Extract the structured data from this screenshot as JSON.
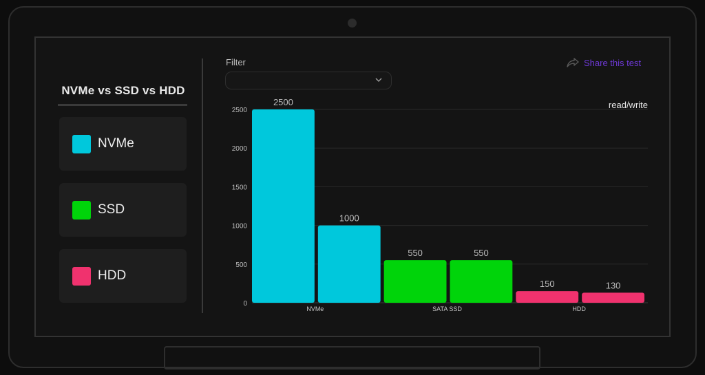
{
  "sidebar": {
    "title": "NVMe vs SSD vs HDD",
    "legend": [
      {
        "label": "NVMe",
        "color": "#00c8dc"
      },
      {
        "label": "SSD",
        "color": "#00d40a"
      },
      {
        "label": "HDD",
        "color": "#f0326e"
      }
    ]
  },
  "filter": {
    "label": "Filter",
    "value": ""
  },
  "share": {
    "label": "Share this test",
    "icon": "share-arrow-icon"
  },
  "chart_data": {
    "type": "bar",
    "categories": [
      "NVMe",
      "SATA SSD",
      "HDD"
    ],
    "series": [
      {
        "values": [
          2500,
          550,
          150
        ]
      },
      {
        "values": [
          1000,
          550,
          130
        ]
      }
    ],
    "colors": [
      "#00c8dc",
      "#00d40a",
      "#f0326e"
    ],
    "annotation": "read/write",
    "y_ticks": [
      0,
      500,
      1000,
      1500,
      2000,
      2500
    ],
    "ylim": [
      0,
      2500
    ],
    "grid": true,
    "xlabel": "",
    "ylabel": ""
  }
}
